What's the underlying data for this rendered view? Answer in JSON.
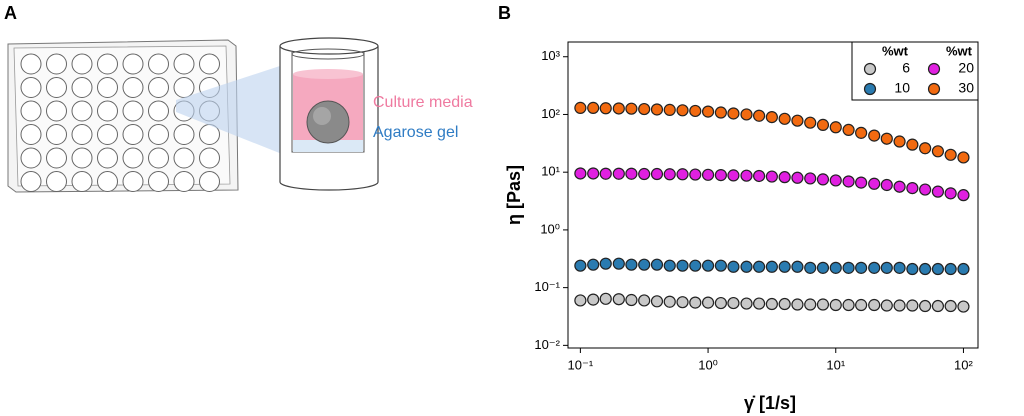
{
  "panel_labels": [
    "A",
    "B"
  ],
  "diagram": {
    "labels": [
      "Culture media",
      "Agarose gel"
    ]
  },
  "chart_data": {
    "type": "scatter",
    "x_label": "γ̇ [1/s]",
    "y_label": "η [Pas]",
    "xscale": "log",
    "yscale": "log",
    "xlim": [
      0.08,
      130
    ],
    "ylim": [
      0.009,
      1800
    ],
    "xticks": [
      {
        "value": 0.1,
        "label": "10⁻¹"
      },
      {
        "value": 1,
        "label": "10⁰"
      },
      {
        "value": 10,
        "label": "10¹"
      },
      {
        "value": 100,
        "label": "10²"
      }
    ],
    "yticks": [
      {
        "value": 0.01,
        "label": "10⁻²"
      },
      {
        "value": 0.1,
        "label": "10⁻¹"
      },
      {
        "value": 1,
        "label": "10⁰"
      },
      {
        "value": 10,
        "label": "10¹"
      },
      {
        "value": 100,
        "label": "10²"
      },
      {
        "value": 1000,
        "label": "10³"
      }
    ],
    "legend_headers": [
      "%wt",
      "%wt"
    ],
    "legend": "upper right",
    "x": [
      0.1,
      0.126,
      0.158,
      0.2,
      0.251,
      0.316,
      0.398,
      0.501,
      0.631,
      0.794,
      1,
      1.26,
      1.58,
      2,
      2.51,
      3.16,
      3.98,
      5.01,
      6.31,
      7.94,
      10,
      12.6,
      15.8,
      20,
      25.1,
      31.6,
      39.8,
      50.1,
      63.1,
      79.4,
      100
    ],
    "series": [
      {
        "name": "6",
        "color": "#c8c8c8",
        "values": [
          0.06,
          0.062,
          0.064,
          0.063,
          0.061,
          0.06,
          0.058,
          0.057,
          0.056,
          0.055,
          0.055,
          0.054,
          0.054,
          0.053,
          0.053,
          0.052,
          0.052,
          0.051,
          0.051,
          0.051,
          0.05,
          0.05,
          0.05,
          0.05,
          0.049,
          0.049,
          0.049,
          0.048,
          0.048,
          0.048,
          0.047
        ]
      },
      {
        "name": "10",
        "color": "#2a7bb0",
        "values": [
          0.24,
          0.25,
          0.26,
          0.26,
          0.25,
          0.25,
          0.25,
          0.24,
          0.24,
          0.24,
          0.24,
          0.24,
          0.23,
          0.23,
          0.23,
          0.23,
          0.23,
          0.23,
          0.22,
          0.22,
          0.22,
          0.22,
          0.22,
          0.22,
          0.22,
          0.22,
          0.21,
          0.21,
          0.21,
          0.21,
          0.21
        ]
      },
      {
        "name": "20",
        "color": "#e020e0",
        "values": [
          9.5,
          9.5,
          9.4,
          9.4,
          9.4,
          9.3,
          9.3,
          9.2,
          9.2,
          9.1,
          9.0,
          8.9,
          8.8,
          8.7,
          8.6,
          8.4,
          8.2,
          8.0,
          7.8,
          7.5,
          7.2,
          6.9,
          6.6,
          6.3,
          6.0,
          5.6,
          5.3,
          5.0,
          4.6,
          4.3,
          4.0
        ]
      },
      {
        "name": "30",
        "color": "#f26a10",
        "values": [
          130,
          130,
          128,
          127,
          126,
          124,
          122,
          120,
          118,
          115,
          112,
          108,
          104,
          100,
          95,
          90,
          84,
          78,
          72,
          66,
          60,
          54,
          48,
          43,
          38,
          34,
          30,
          26,
          23,
          20,
          18
        ]
      }
    ]
  }
}
